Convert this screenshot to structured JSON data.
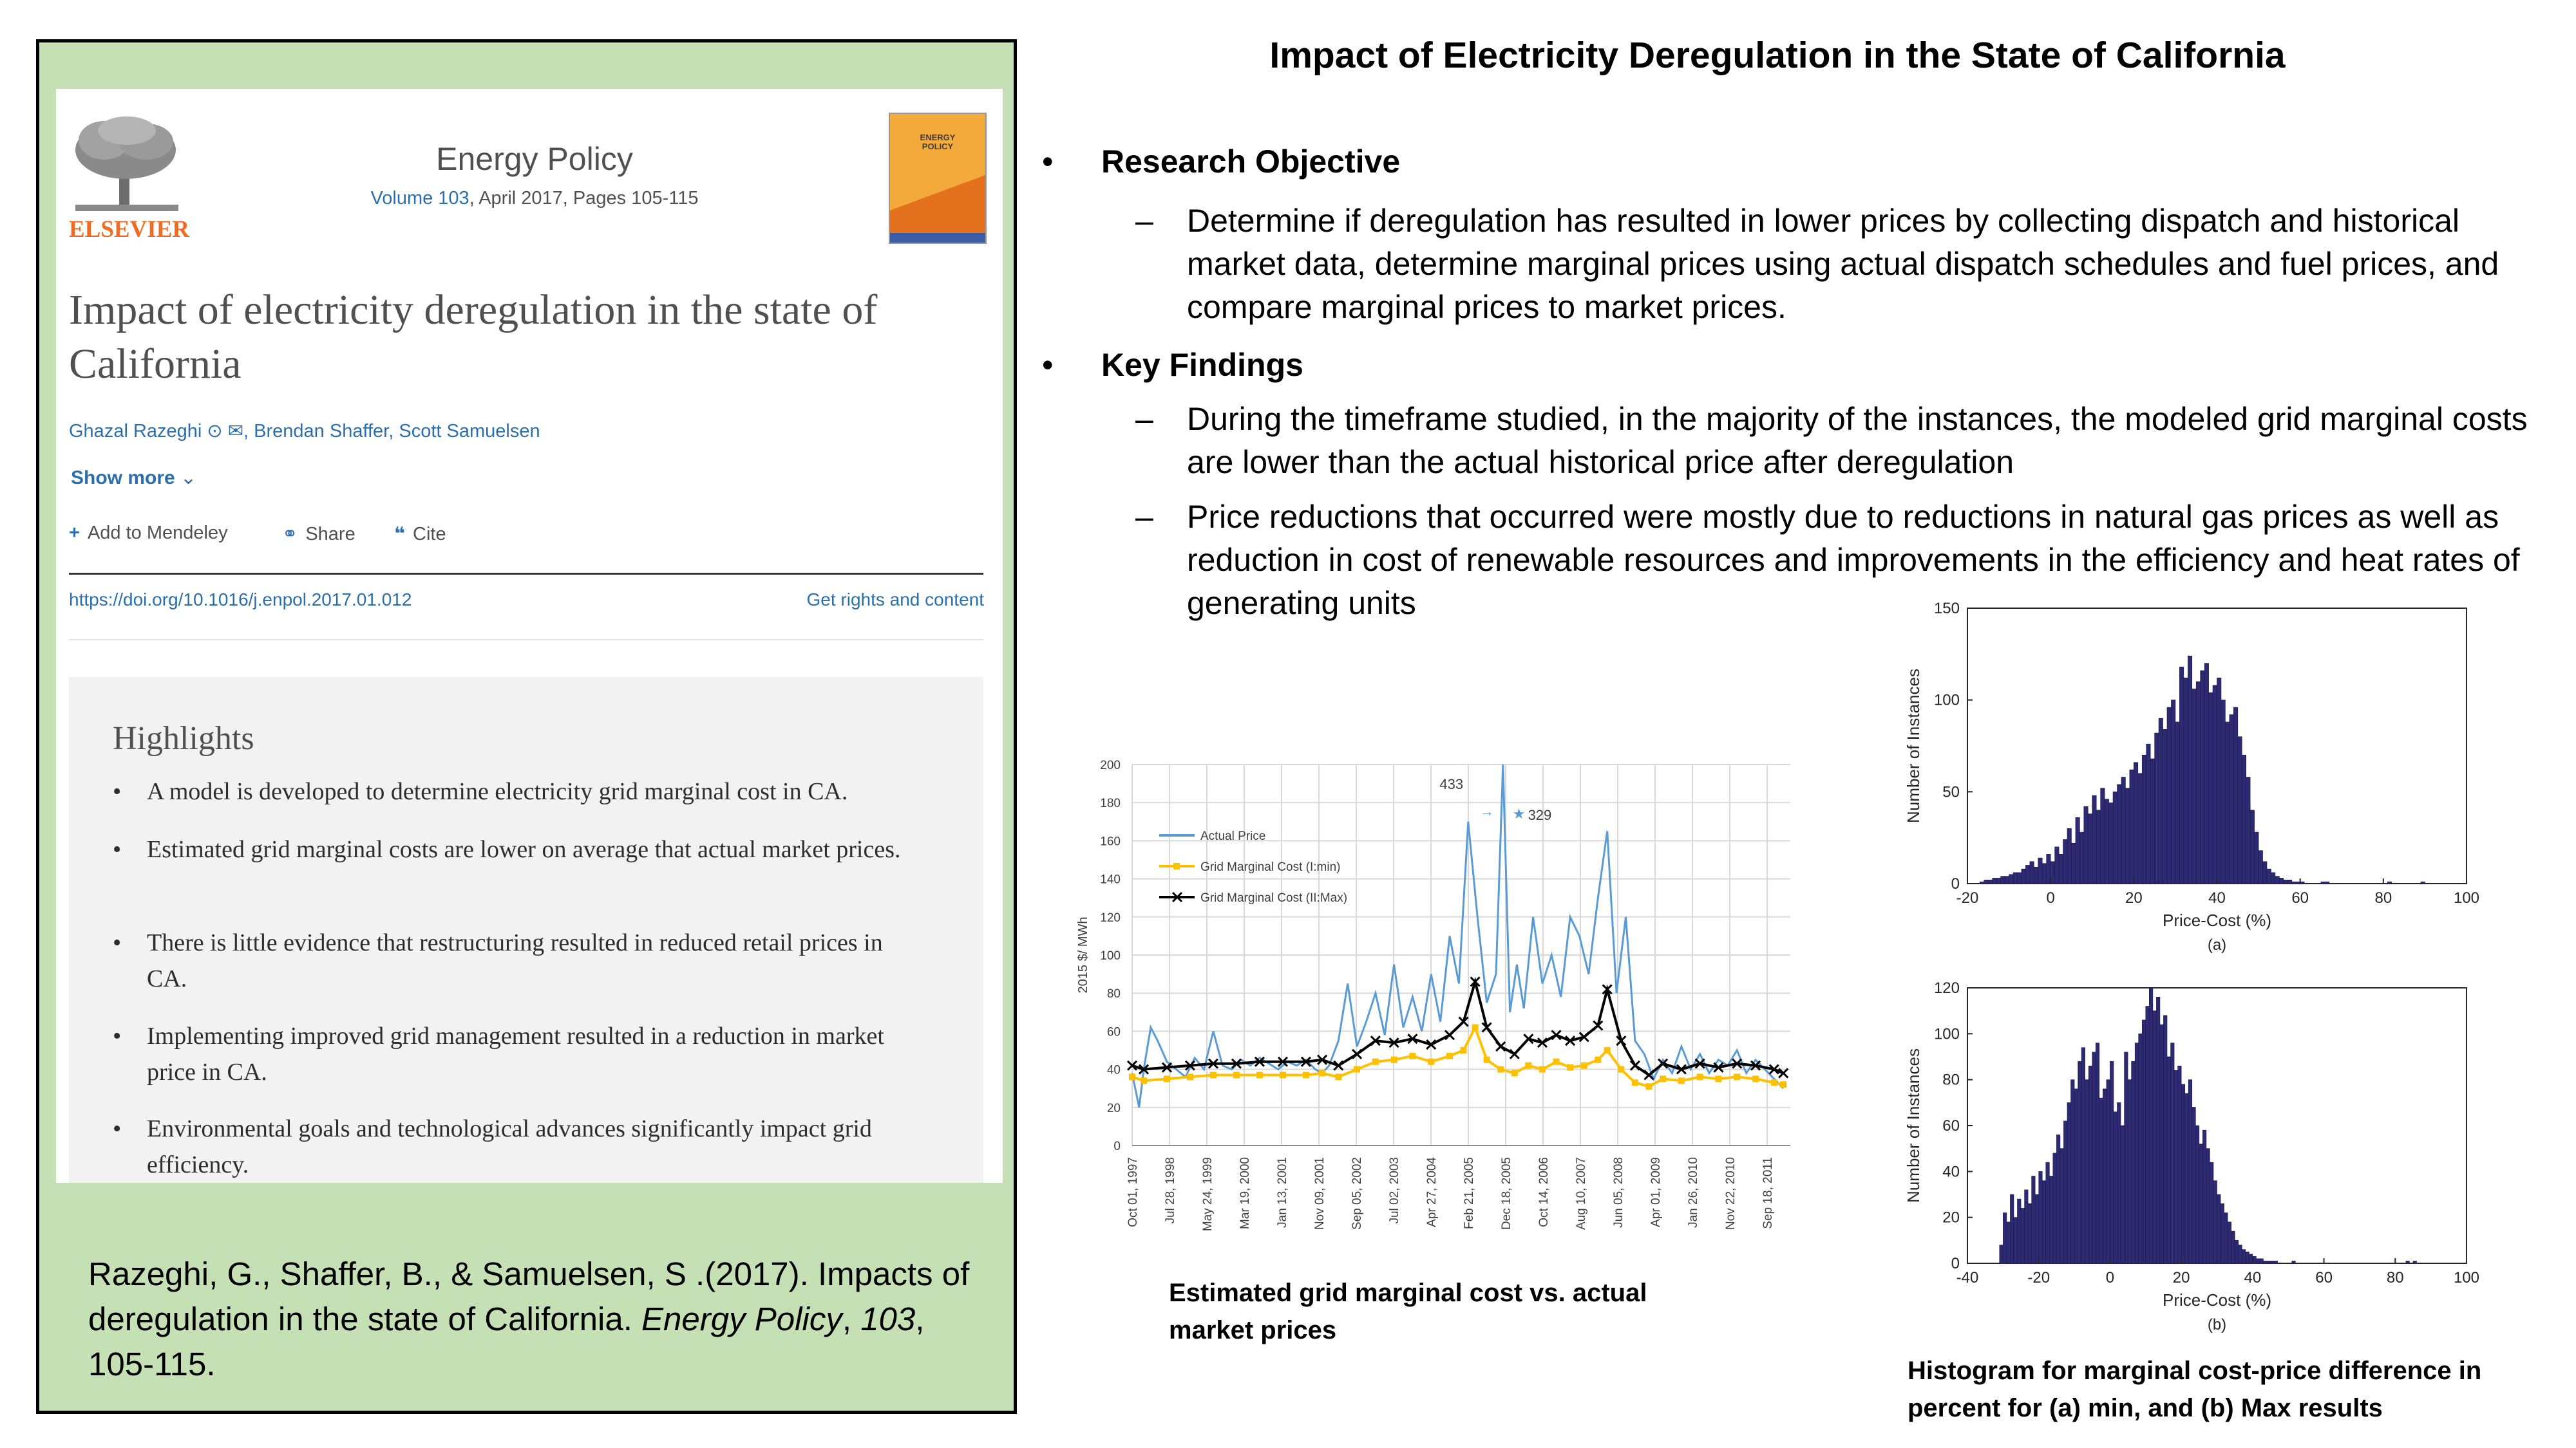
{
  "title": "Impact of Electricity Deregulation in the State of California",
  "left_panel": {
    "journal": {
      "publisher": "ELSEVIER",
      "name": "Energy Policy",
      "volume_link": "Volume 103",
      "volume_rest": ", April 2017, Pages 105-115",
      "cover_text": "ENERGY POLICY"
    },
    "article_title": "Impact of electricity deregulation in the state of California",
    "authors": "Ghazal Razeghi ⊙ ✉, Brendan Shaffer, Scott Samuelsen",
    "show_more": "Show more",
    "actions": {
      "mendeley": "Add to Mendeley",
      "share": "Share",
      "cite": "Cite"
    },
    "doi": "https://doi.org/10.1016/j.enpol.2017.01.012",
    "rights": "Get rights and content",
    "highlights_title": "Highlights",
    "highlights": [
      "A model is developed to determine electricity grid marginal cost in CA.",
      "Estimated grid marginal costs are lower on average that actual market prices.",
      "There is little evidence that restructuring resulted in reduced retail prices in CA.",
      "Implementing improved grid management resulted in a reduction in market price in CA.",
      "Environmental goals and technological advances significantly impact grid efficiency."
    ],
    "citation": {
      "part1": "Razeghi, G., Shaffer, B., & Samuelsen, S .(2017). Impacts of deregulation in the state of California. ",
      "journal": "Energy Policy",
      "sep": ", ",
      "volume": "103",
      "pages": ", 105-115."
    }
  },
  "research": {
    "objective_heading": "Research Objective",
    "objective_text": "Determine if deregulation has resulted in lower prices by collecting dispatch and historical market data, determine marginal prices using actual dispatch schedules and fuel prices, and compare marginal prices to market prices.",
    "findings_heading": "Key Findings",
    "findings": [
      "During the timeframe studied, in the majority of the instances, the modeled grid marginal costs are lower than the actual historical price after deregulation",
      "Price reductions that occurred were mostly due to reductions in natural gas prices as well as reduction in cost of renewable resources and improvements in the efficiency and heat rates of generating units"
    ]
  },
  "captions": {
    "line_chart": "Estimated grid marginal cost vs. actual market prices",
    "histograms": "Histogram for marginal cost-price difference in percent for (a) min, and (b) Max results"
  },
  "chart_data": [
    {
      "type": "line",
      "ylabel": "2015 $/ MWh",
      "ylim": [
        0,
        200
      ],
      "yticks": [
        0,
        20,
        40,
        60,
        80,
        100,
        120,
        140,
        160,
        180,
        200
      ],
      "xticks": [
        "Oct 01, 1997",
        "Jul 28, 1998",
        "May 24, 1999",
        "Mar 19, 2000",
        "Jan 13, 2001",
        "Nov 09, 2001",
        "Sep 05, 2002",
        "Jul 02, 2003",
        "Apr 27, 2004",
        "Feb 21, 2005",
        "Dec 18, 2005",
        "Oct 14, 2006",
        "Aug 10, 2007",
        "Jun 05, 2008",
        "Apr 01, 2009",
        "Jan 26, 2010",
        "Nov 22, 2010",
        "Sep 18, 2011"
      ],
      "grid": true,
      "legend_position": "top-left",
      "annotations": [
        {
          "label": "433",
          "near": "Feb 2005"
        },
        {
          "label": "329",
          "near": "Oct 2006"
        }
      ],
      "series": [
        {
          "name": "Actual Price",
          "color": "#5b9bd5",
          "x": [
            1997.75,
            1997.9,
            1998.0,
            1998.15,
            1998.3,
            1998.5,
            1998.7,
            1998.9,
            1999.1,
            1999.3,
            1999.5,
            1999.7,
            1999.9,
            2000.1,
            2000.3,
            2000.5,
            2000.7,
            2000.9,
            2001.1,
            2001.3,
            2001.5,
            2001.7,
            2001.85,
            2002.0,
            2002.2,
            2002.4,
            2002.6,
            2002.8,
            2003.0,
            2003.2,
            2003.4,
            2003.6,
            2003.8,
            2004.0,
            2004.2,
            2004.4,
            2004.6,
            2004.8,
            2005.0,
            2005.2,
            2005.4,
            2005.6,
            2005.75,
            2005.9,
            2006.05,
            2006.2,
            2006.4,
            2006.6,
            2006.8,
            2007.0,
            2007.2,
            2007.4,
            2007.6,
            2007.8,
            2008.0,
            2008.2,
            2008.4,
            2008.6,
            2008.8,
            2009.0,
            2009.2,
            2009.4,
            2009.6,
            2009.8,
            2010.0,
            2010.2,
            2010.4,
            2010.6,
            2010.8,
            2011.0,
            2011.2,
            2011.4,
            2011.6,
            2011.8
          ],
          "values": [
            38,
            20,
            40,
            62,
            55,
            44,
            40,
            36,
            46,
            40,
            60,
            42,
            40,
            45,
            42,
            46,
            43,
            40,
            44,
            42,
            45,
            40,
            38,
            42,
            55,
            85,
            52,
            65,
            80,
            58,
            95,
            62,
            78,
            60,
            90,
            65,
            110,
            85,
            170,
            120,
            75,
            90,
            200,
            70,
            95,
            72,
            120,
            85,
            100,
            78,
            120,
            110,
            90,
            130,
            165,
            80,
            120,
            55,
            48,
            35,
            45,
            38,
            52,
            40,
            48,
            38,
            45,
            42,
            50,
            38,
            45,
            40,
            35,
            30
          ]
        },
        {
          "name": "Grid Marginal Cost (I:min)",
          "color": "#ffc000",
          "x": [
            1997.75,
            1998.0,
            1998.5,
            1999.0,
            1999.5,
            2000.0,
            2000.5,
            2001.0,
            2001.5,
            2001.85,
            2002.2,
            2002.6,
            2003.0,
            2003.4,
            2003.8,
            2004.2,
            2004.6,
            2004.9,
            2005.15,
            2005.4,
            2005.7,
            2006.0,
            2006.3,
            2006.6,
            2006.9,
            2007.2,
            2007.5,
            2007.8,
            2008.0,
            2008.3,
            2008.6,
            2008.9,
            2009.2,
            2009.6,
            2010.0,
            2010.4,
            2010.8,
            2011.2,
            2011.6,
            2011.8
          ],
          "values": [
            36,
            34,
            35,
            36,
            37,
            37,
            37,
            37,
            37,
            38,
            36,
            40,
            44,
            45,
            47,
            44,
            47,
            50,
            62,
            45,
            40,
            38,
            42,
            40,
            44,
            41,
            42,
            45,
            50,
            40,
            33,
            31,
            35,
            34,
            36,
            35,
            36,
            35,
            33,
            32
          ]
        },
        {
          "name": "Grid Marginal Cost (II:Max)",
          "color": "#000000",
          "x": [
            1997.75,
            1998.0,
            1998.5,
            1999.0,
            1999.5,
            2000.0,
            2000.5,
            2001.0,
            2001.5,
            2001.85,
            2002.2,
            2002.6,
            2003.0,
            2003.4,
            2003.8,
            2004.2,
            2004.6,
            2004.9,
            2005.15,
            2005.4,
            2005.7,
            2006.0,
            2006.3,
            2006.6,
            2006.9,
            2007.2,
            2007.5,
            2007.8,
            2008.0,
            2008.3,
            2008.6,
            2008.9,
            2009.2,
            2009.6,
            2010.0,
            2010.4,
            2010.8,
            2011.2,
            2011.6,
            2011.8
          ],
          "values": [
            42,
            40,
            41,
            42,
            43,
            43,
            44,
            44,
            44,
            45,
            42,
            48,
            55,
            54,
            56,
            53,
            58,
            65,
            86,
            62,
            52,
            48,
            56,
            54,
            58,
            55,
            57,
            63,
            82,
            55,
            42,
            37,
            43,
            40,
            43,
            41,
            43,
            42,
            40,
            38
          ]
        }
      ]
    },
    {
      "type": "bar",
      "caption": "(a)",
      "xlabel": "Price-Cost (%)",
      "ylabel": "Number of Instances",
      "xlim": [
        -20,
        100
      ],
      "ylim": [
        0,
        150
      ],
      "xticks": [
        -20,
        0,
        20,
        40,
        60,
        80,
        100
      ],
      "yticks": [
        0,
        50,
        100,
        150
      ],
      "bin_width": 1,
      "bin_start": -17,
      "color": "#2e2a72",
      "values": [
        1,
        2,
        2,
        3,
        3,
        4,
        4,
        5,
        6,
        6,
        8,
        10,
        12,
        9,
        14,
        11,
        16,
        12,
        20,
        16,
        24,
        30,
        22,
        36,
        28,
        42,
        38,
        48,
        40,
        52,
        46,
        44,
        50,
        54,
        58,
        52,
        62,
        66,
        60,
        70,
        76,
        68,
        82,
        90,
        84,
        96,
        100,
        88,
        118,
        112,
        124,
        106,
        110,
        116,
        120,
        104,
        108,
        112,
        100,
        88,
        92,
        96,
        80,
        70,
        58,
        40,
        28,
        18,
        12,
        8,
        6,
        4,
        3,
        2,
        2,
        1,
        1,
        1,
        0,
        0,
        0,
        0,
        1,
        1,
        0,
        0,
        0,
        0,
        0,
        0,
        0,
        0,
        0,
        0,
        0,
        0,
        0,
        0,
        1,
        0,
        0,
        0,
        0,
        0,
        0,
        0,
        1
      ]
    },
    {
      "type": "bar",
      "caption": "(b)",
      "xlabel": "Price-Cost (%)",
      "ylabel": "Number of Instances",
      "xlim": [
        -40,
        100
      ],
      "ylim": [
        0,
        120
      ],
      "xticks": [
        -40,
        -20,
        0,
        20,
        40,
        60,
        80,
        100
      ],
      "yticks": [
        0,
        20,
        40,
        60,
        80,
        100,
        120
      ],
      "bin_width": 1,
      "bin_start": -31,
      "color": "#2e2a72",
      "values": [
        8,
        22,
        18,
        30,
        20,
        28,
        24,
        32,
        26,
        38,
        30,
        40,
        36,
        44,
        38,
        48,
        56,
        50,
        62,
        70,
        80,
        76,
        88,
        94,
        80,
        86,
        92,
        96,
        72,
        76,
        80,
        88,
        66,
        70,
        60,
        92,
        80,
        88,
        96,
        100,
        106,
        112,
        120,
        110,
        116,
        104,
        108,
        90,
        96,
        84,
        86,
        78,
        74,
        80,
        68,
        60,
        52,
        58,
        50,
        44,
        36,
        30,
        26,
        22,
        18,
        14,
        10,
        8,
        6,
        5,
        4,
        3,
        2,
        2,
        1,
        1,
        1,
        1,
        0,
        0,
        0,
        0,
        1,
        0,
        0,
        0,
        0,
        0,
        0,
        0,
        0,
        0,
        0,
        0,
        0,
        0,
        0,
        0,
        0,
        0,
        0,
        0,
        0,
        0,
        0,
        0,
        0,
        0,
        0,
        0,
        0,
        0,
        0,
        0,
        1,
        0,
        1
      ]
    }
  ]
}
